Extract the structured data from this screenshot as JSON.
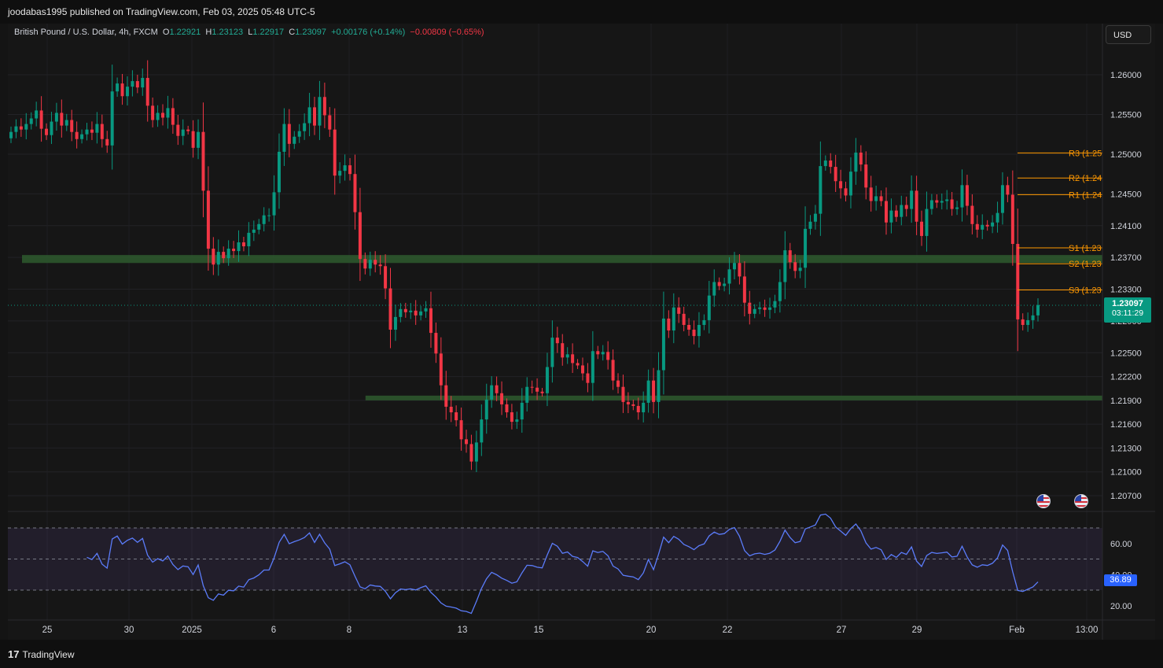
{
  "header": {
    "publisher": "joodabas1995 published on TradingView.com, Feb 03, 2025 05:48 UTC-5"
  },
  "legend": {
    "symbol": "British Pound / U.S. Dollar, 4h, FXCM",
    "o_label": "O",
    "o": "1.22921",
    "h_label": "H",
    "h": "1.23123",
    "l_label": "L",
    "l": "1.22917",
    "c_label": "C",
    "c": "1.23097",
    "change": "+0.00176 (+0.14%)",
    "change2": "−0.00809 (−0.65%)"
  },
  "currency": "USD",
  "price_badge": {
    "price": "1.23097",
    "countdown": "03:11:29"
  },
  "rsi_badge": "36.89",
  "footer": {
    "brand": "TradingView"
  },
  "colors": {
    "up": "#089981",
    "down": "#f23645",
    "pivot": "#ff9800",
    "zone": "#2e5a2e",
    "rsi": "#5b7cfa",
    "background": "#161616"
  },
  "icons": {
    "event_flags": [
      "us-flag-icon",
      "us-flag-icon"
    ]
  },
  "chart_data": {
    "type": "candlestick",
    "symbol": "GBPUSD",
    "timeframe": "4h",
    "ylim": [
      1.2055,
      1.2625
    ],
    "y_ticks": [
      "1.26000",
      "1.25500",
      "1.25000",
      "1.24500",
      "1.24100",
      "1.23700",
      "1.23300",
      "1.22900",
      "1.22500",
      "1.22200",
      "1.21900",
      "1.21600",
      "1.21300",
      "1.21000",
      "1.20700"
    ],
    "x_ticks": [
      "25",
      "30",
      "2025",
      "6",
      "8",
      "13",
      "15",
      "20",
      "22",
      "27",
      "29",
      "Feb",
      "13:00"
    ],
    "last_price": 1.23097,
    "closes": [
      1.2528,
      1.2535,
      1.2531,
      1.2538,
      1.2545,
      1.2555,
      1.2532,
      1.2524,
      1.2541,
      1.2552,
      1.2536,
      1.2543,
      1.2528,
      1.2519,
      1.2525,
      1.2531,
      1.2527,
      1.2538,
      1.2519,
      1.2511,
      1.2579,
      1.2589,
      1.2573,
      1.2585,
      1.2592,
      1.2584,
      1.2596,
      1.2561,
      1.2543,
      1.2552,
      1.2546,
      1.2558,
      1.2537,
      1.2523,
      1.2531,
      1.2529,
      1.2508,
      1.2528,
      1.2454,
      1.2381,
      1.2361,
      1.2377,
      1.2369,
      1.2381,
      1.2378,
      1.2389,
      1.2384,
      1.2401,
      1.2405,
      1.2412,
      1.2423,
      1.2423,
      1.2452,
      1.2503,
      1.2538,
      1.2513,
      1.2522,
      1.2529,
      1.2539,
      1.2559,
      1.2536,
      1.2572,
      1.2549,
      1.2531,
      1.2473,
      1.2479,
      1.2486,
      1.2475,
      1.2427,
      1.2368,
      1.2356,
      1.2367,
      1.2361,
      1.2359,
      1.2331,
      1.2279,
      1.2295,
      1.2305,
      1.2301,
      1.2303,
      1.2297,
      1.2302,
      1.2306,
      1.2275,
      1.2249,
      1.2209,
      1.2182,
      1.2175,
      1.2165,
      1.2141,
      1.2135,
      1.2113,
      1.2137,
      1.2166,
      1.2191,
      1.2209,
      1.2199,
      1.2185,
      1.2175,
      1.2163,
      1.2166,
      1.2187,
      1.2207,
      1.2206,
      1.2201,
      1.2199,
      1.2232,
      1.2269,
      1.2262,
      1.2244,
      1.2248,
      1.2237,
      1.2234,
      1.2224,
      1.2212,
      1.2252,
      1.2248,
      1.2251,
      1.2241,
      1.2215,
      1.2207,
      1.2188,
      1.2185,
      1.2183,
      1.2175,
      1.2187,
      1.2215,
      1.2188,
      1.2228,
      1.2293,
      1.2278,
      1.2307,
      1.2299,
      1.2285,
      1.2279,
      1.2271,
      1.2285,
      1.2291,
      1.2322,
      1.2339,
      1.2334,
      1.2337,
      1.2355,
      1.2363,
      1.2346,
      1.2313,
      1.2299,
      1.2305,
      1.2307,
      1.2304,
      1.2307,
      1.2315,
      1.2339,
      1.2379,
      1.2364,
      1.2353,
      1.2357,
      1.2406,
      1.2415,
      1.2425,
      1.2485,
      1.2492,
      1.2484,
      1.2466,
      1.2457,
      1.2448,
      1.2478,
      1.2502,
      1.2487,
      1.2458,
      1.2441,
      1.2447,
      1.2441,
      1.2414,
      1.2429,
      1.2421,
      1.2436,
      1.2431,
      1.2454,
      1.2415,
      1.2397,
      1.2431,
      1.2442,
      1.2439,
      1.2441,
      1.2443,
      1.2431,
      1.2433,
      1.2461,
      1.2435,
      1.2412,
      1.2405,
      1.2411,
      1.2409,
      1.2414,
      1.2426,
      1.2461,
      1.2449,
      1.2387,
      1.2292,
      1.2285,
      1.2291,
      1.2297,
      1.231
    ],
    "rsi": {
      "name": "RSI",
      "levels": [
        70,
        50,
        30
      ],
      "ylim": [
        15,
        80
      ],
      "y_ticks": [
        "60.00",
        "40.00",
        "20.00"
      ],
      "last": 36.89
    },
    "pivots": [
      {
        "label": "R3 (1.25",
        "value": 1.25015
      },
      {
        "label": "R2 (1.24",
        "value": 1.247
      },
      {
        "label": "R1 (1.24",
        "value": 1.2449
      },
      {
        "label": "S1 (1.23",
        "value": 1.2382
      },
      {
        "label": "S2 (1.23",
        "value": 1.2362
      },
      {
        "label": "S3 (1.23",
        "value": 1.2329
      }
    ],
    "zones": [
      {
        "name": "support-zone-upper",
        "low": 1.2363,
        "high": 1.2373,
        "from_bar": 0
      },
      {
        "name": "support-zone-lower",
        "low": 1.219,
        "high": 1.2196,
        "from_bar": 71
      }
    ]
  }
}
